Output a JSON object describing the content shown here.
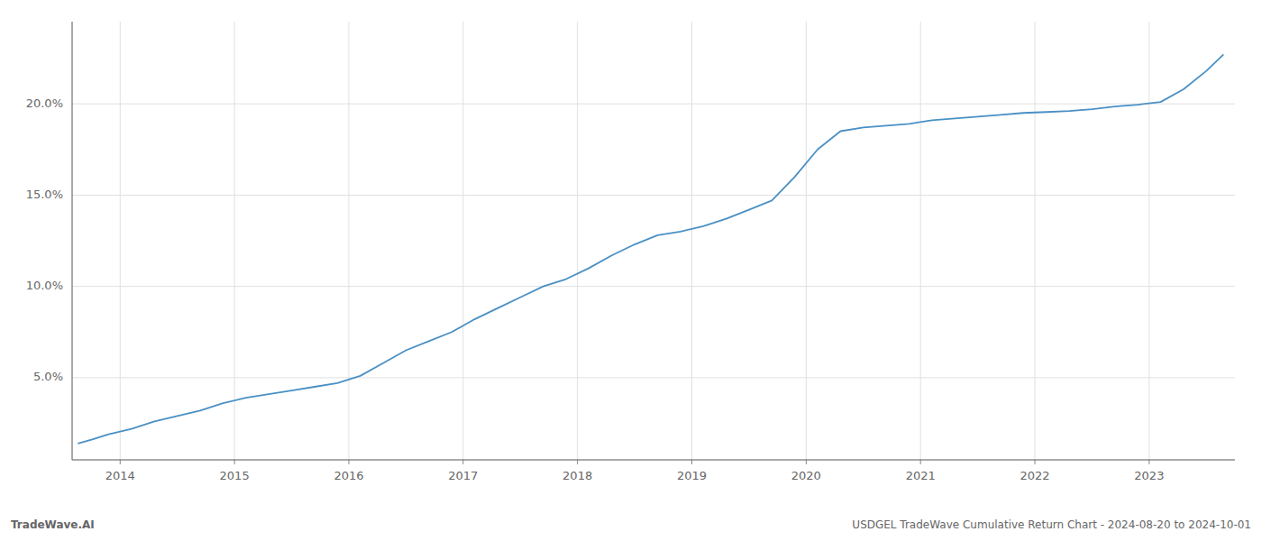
{
  "chart_data": {
    "type": "line",
    "title": "USDGEL TradeWave Cumulative Return Chart - 2024-08-20 to 2024-10-01",
    "annotations": [
      "TradeWave.AI"
    ],
    "x": [
      2013.63,
      2013.75,
      2013.9,
      2014.1,
      2014.3,
      2014.5,
      2014.7,
      2014.9,
      2015.1,
      2015.3,
      2015.5,
      2015.7,
      2015.9,
      2016.1,
      2016.3,
      2016.5,
      2016.7,
      2016.9,
      2017.1,
      2017.3,
      2017.5,
      2017.7,
      2017.9,
      2018.1,
      2018.3,
      2018.5,
      2018.7,
      2018.9,
      2019.1,
      2019.3,
      2019.5,
      2019.7,
      2019.9,
      2020.1,
      2020.3,
      2020.5,
      2020.7,
      2020.9,
      2021.1,
      2021.3,
      2021.5,
      2021.7,
      2021.9,
      2022.1,
      2022.3,
      2022.5,
      2022.7,
      2022.9,
      2023.1,
      2023.3,
      2023.5,
      2023.65
    ],
    "values": [
      1.4,
      1.6,
      1.9,
      2.2,
      2.6,
      2.9,
      3.2,
      3.6,
      3.9,
      4.1,
      4.3,
      4.5,
      4.7,
      5.1,
      5.8,
      6.5,
      7.0,
      7.5,
      8.2,
      8.8,
      9.4,
      10.0,
      10.4,
      11.0,
      11.7,
      12.3,
      12.8,
      13.0,
      13.3,
      13.7,
      14.2,
      14.7,
      16.0,
      17.5,
      18.5,
      18.7,
      18.8,
      18.9,
      19.1,
      19.2,
      19.3,
      19.4,
      19.5,
      19.55,
      19.6,
      19.7,
      19.85,
      19.95,
      20.1,
      20.8,
      21.8,
      22.7
    ],
    "color": "#4a90c4",
    "xlim": [
      2013.58,
      2023.75
    ],
    "xticks": [
      2014,
      2015,
      2016,
      2017,
      2018,
      2019,
      2020,
      2021,
      2022,
      2023
    ],
    "ylim": [
      0.5,
      24.5
    ],
    "yticks": [
      {
        "value": 5.0,
        "label": "5.0%"
      },
      {
        "value": 10.0,
        "label": "10.0%"
      },
      {
        "value": 15.0,
        "label": "15.0%"
      },
      {
        "value": 20.0,
        "label": "20.0%"
      }
    ],
    "grid": true
  }
}
